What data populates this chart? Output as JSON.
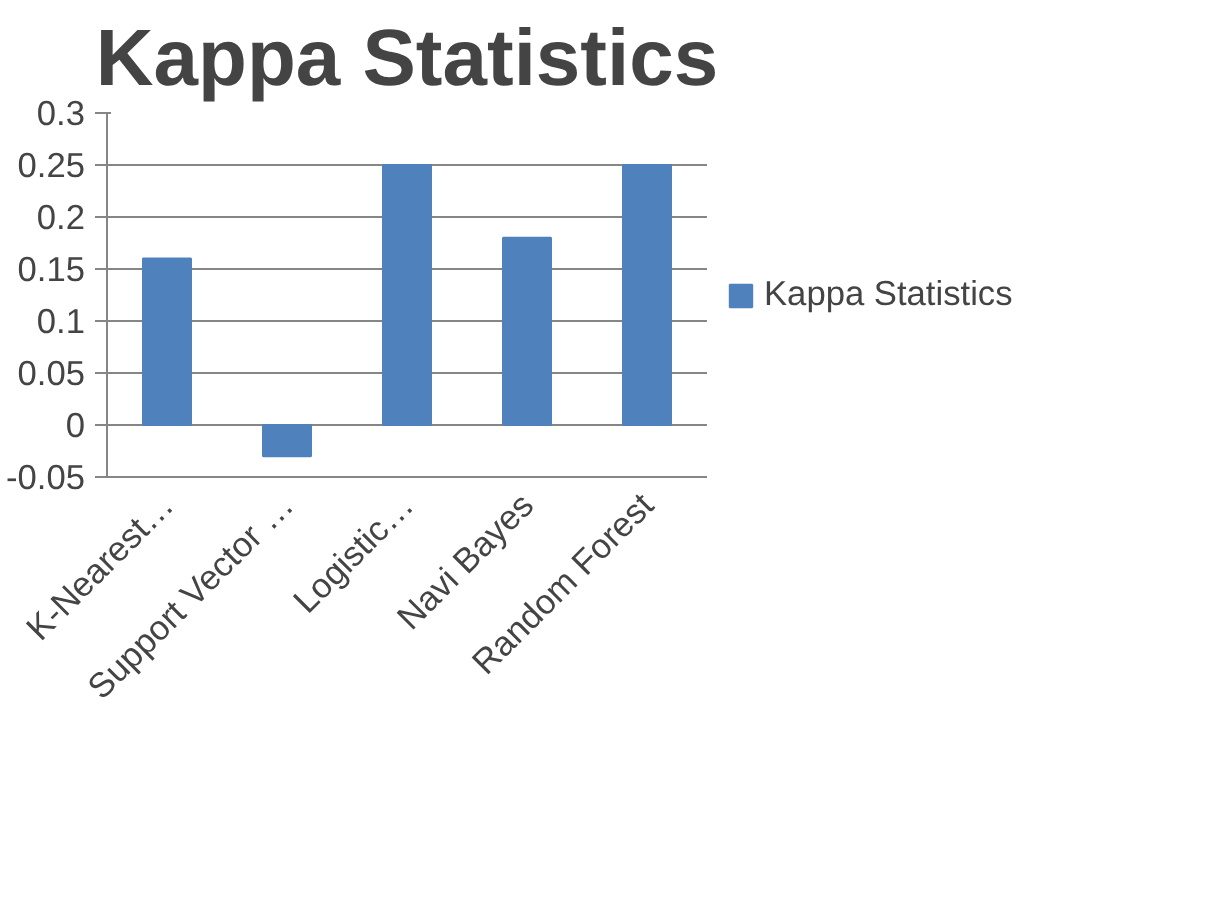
{
  "chart_data": {
    "type": "bar",
    "title": "Kappa Statistics",
    "categories": [
      "K-Nearest…",
      "Support Vector …",
      "Logistic…",
      "Navi Bayes",
      "Random Forest"
    ],
    "series": [
      {
        "name": "Kappa Statistics",
        "color": "#4f81bd",
        "values": [
          0.16,
          -0.03,
          0.25,
          0.18,
          0.25
        ]
      }
    ],
    "ylim": [
      -0.05,
      0.3
    ],
    "yticks": [
      -0.05,
      0,
      0.05,
      0.1,
      0.15,
      0.2,
      0.25,
      0.3
    ],
    "grid": "y",
    "legend": "right"
  }
}
